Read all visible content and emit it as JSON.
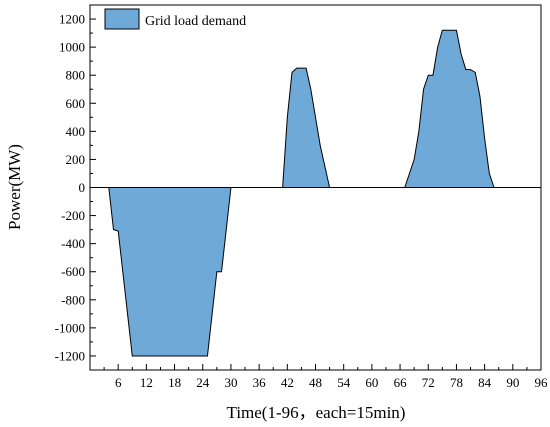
{
  "chart_data": {
    "type": "area",
    "xlabel": "Time(1-96，each=15min)",
    "ylabel": "Power(MW)",
    "xlim": [
      0,
      96
    ],
    "ylim": [
      -1300,
      1300
    ],
    "xticks": [
      6,
      12,
      18,
      24,
      30,
      36,
      42,
      48,
      54,
      60,
      66,
      72,
      78,
      84,
      90,
      96
    ],
    "yticks": [
      -1200,
      -1000,
      -800,
      -600,
      -400,
      -200,
      0,
      200,
      400,
      600,
      800,
      1000,
      1200
    ],
    "grid": false,
    "legend_position": "top-left",
    "fill_color": "#6fa9d7",
    "series": [
      {
        "name": "Grid load demand",
        "points": [
          [
            4,
            0
          ],
          [
            5,
            -300
          ],
          [
            6,
            -310
          ],
          [
            9,
            -1200
          ],
          [
            25,
            -1200
          ],
          [
            27,
            -600
          ],
          [
            28,
            -600
          ],
          [
            30,
            0
          ],
          [
            41,
            0
          ],
          [
            42,
            500
          ],
          [
            43,
            820
          ],
          [
            44,
            850
          ],
          [
            46,
            850
          ],
          [
            47,
            700
          ],
          [
            49,
            300
          ],
          [
            51,
            0
          ],
          [
            67,
            0
          ],
          [
            69,
            200
          ],
          [
            70,
            400
          ],
          [
            71,
            700
          ],
          [
            72,
            800
          ],
          [
            73,
            800
          ],
          [
            74,
            1000
          ],
          [
            75,
            1120
          ],
          [
            78,
            1120
          ],
          [
            79,
            950
          ],
          [
            80,
            840
          ],
          [
            81,
            840
          ],
          [
            82,
            820
          ],
          [
            83,
            650
          ],
          [
            84,
            350
          ],
          [
            85,
            100
          ],
          [
            86,
            0
          ]
        ]
      }
    ]
  }
}
